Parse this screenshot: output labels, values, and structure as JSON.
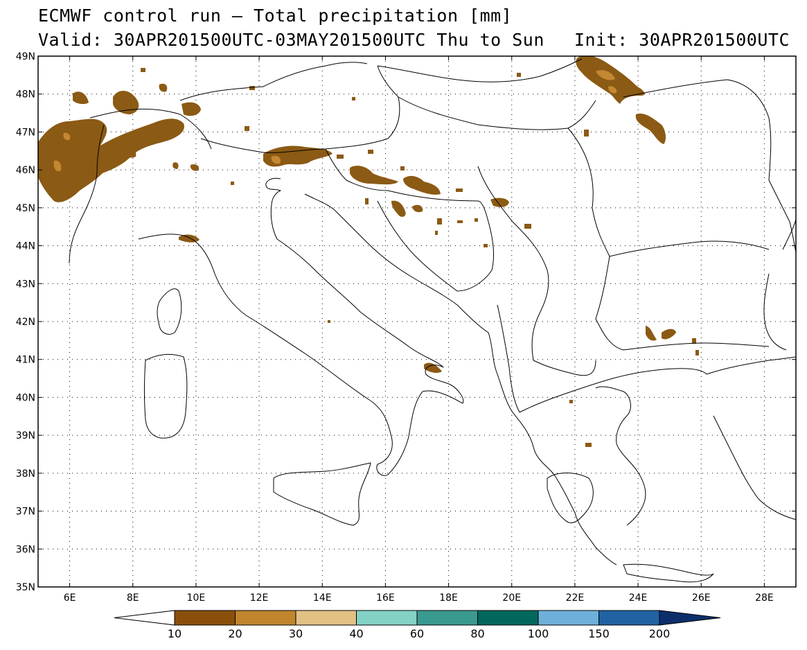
{
  "title": {
    "line1": "ECMWF control run – Total precipitation [mm]",
    "valid": "Valid: 30APR201500UTC-03MAY201500UTC Thu to Sun",
    "init": "Init: 30APR201500UTC"
  },
  "map": {
    "projection": "lat-lon",
    "lon_range": [
      5,
      29
    ],
    "lat_range": [
      35,
      49
    ],
    "gridlines": "dotted",
    "lat_ticks": [
      "35N",
      "36N",
      "37N",
      "38N",
      "39N",
      "40N",
      "41N",
      "42N",
      "43N",
      "44N",
      "45N",
      "46N",
      "47N",
      "48N",
      "49N"
    ],
    "lon_ticks": [
      "6E",
      "8E",
      "10E",
      "12E",
      "14E",
      "16E",
      "18E",
      "20E",
      "22E",
      "24E",
      "26E",
      "28E"
    ],
    "precip_color": "#8b5a14",
    "precip_highlight_color": "#c48732"
  },
  "colorbar": {
    "labels": [
      "10",
      "20",
      "30",
      "40",
      "60",
      "80",
      "100",
      "150",
      "200"
    ],
    "colors": [
      "#8b4f0c",
      "#c0852d",
      "#e3c185",
      "#83d2c6",
      "#3a9a90",
      "#03675e",
      "#6fb0da",
      "#2162a3"
    ],
    "under_color": "#ffffff",
    "over_color": "#0c2f6b"
  }
}
